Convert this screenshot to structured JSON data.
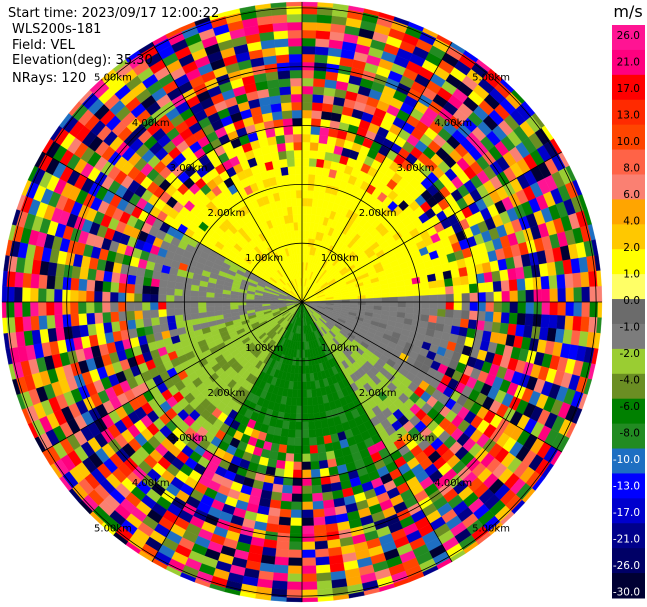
{
  "header": {
    "start_time": "Start time: 2023/09/17 12:00:22",
    "instrument": "WLS200s-181",
    "field": "Field: VEL",
    "elevation": "Elevation(deg): 35.30",
    "nrays": "NRays: 120"
  },
  "chart_data": {
    "type": "heatmap",
    "subtype": "polar-ppi",
    "field": "VEL",
    "units": "m/s",
    "rays": 120,
    "range_rings_km": [
      1.0,
      2.0,
      3.0,
      4.0,
      5.0
    ],
    "range_ring_labels": [
      "1.00km",
      "2.00km",
      "3.00km",
      "4.00km",
      "5.00km"
    ],
    "colorbar": {
      "title": "m/s",
      "ticks": [
        "26.0",
        "21.0",
        "17.0",
        "13.0",
        "10.0",
        "8.0",
        "6.0",
        "4.0",
        "2.0",
        "1.0",
        "0.0",
        "-1.0",
        "-2.0",
        "-4.0",
        "-6.0",
        "-8.0",
        "-10.0",
        "-13.0",
        "-17.0",
        "-21.0",
        "-26.0",
        "-30.0"
      ],
      "colors": [
        "#ff1493",
        "#ff007f",
        "#ff0000",
        "#ff2a00",
        "#ff4500",
        "#ff6347",
        "#fa8072",
        "#ffa500",
        "#ffc800",
        "#ffff00",
        "#ffff66",
        "#6b6b6b",
        "#7c7c7c",
        "#9acd32",
        "#6b8e23",
        "#008000",
        "#228b22",
        "#1e6fc2",
        "#0000ff",
        "#0000cd",
        "#00008b",
        "#000066",
        "#000033"
      ]
    }
  }
}
